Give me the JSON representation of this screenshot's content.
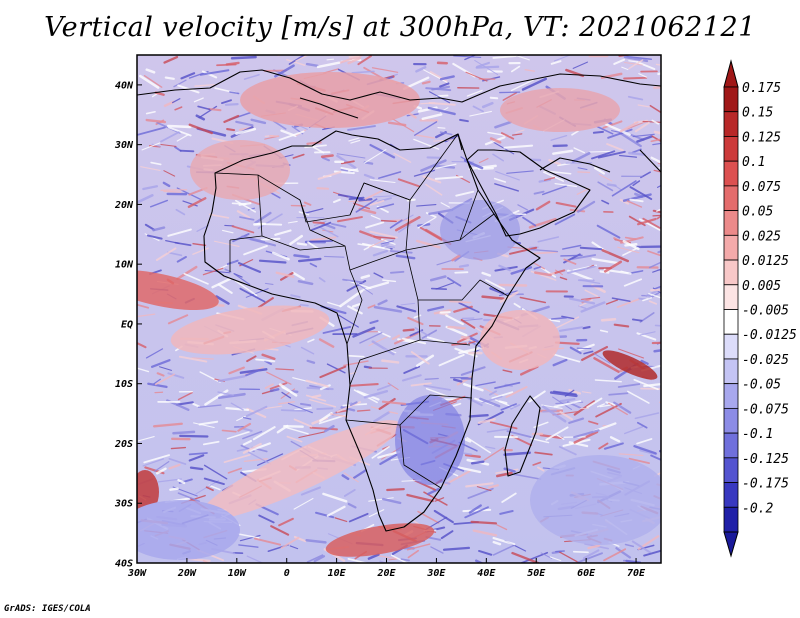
{
  "title": "Vertical velocity [m/s] at 300hPa, VT: 2021062121",
  "credit": "GrADS: IGES/COLA",
  "map": {
    "projection": "latlon",
    "lon_range": [
      -30,
      75
    ],
    "lat_range": [
      -40,
      45
    ],
    "lat_ticks": [
      {
        "value": 40,
        "label": "40N"
      },
      {
        "value": 30,
        "label": "30N"
      },
      {
        "value": 20,
        "label": "20N"
      },
      {
        "value": 10,
        "label": "10N"
      },
      {
        "value": 0,
        "label": "EQ"
      },
      {
        "value": -10,
        "label": "10S"
      },
      {
        "value": -20,
        "label": "20S"
      },
      {
        "value": -30,
        "label": "30S"
      },
      {
        "value": -40,
        "label": "40S"
      }
    ],
    "lon_ticks": [
      {
        "value": -30,
        "label": "30W"
      },
      {
        "value": -20,
        "label": "20W"
      },
      {
        "value": -10,
        "label": "10W"
      },
      {
        "value": 0,
        "label": "0"
      },
      {
        "value": 10,
        "label": "10E"
      },
      {
        "value": 20,
        "label": "20E"
      },
      {
        "value": 30,
        "label": "30E"
      },
      {
        "value": 40,
        "label": "40E"
      },
      {
        "value": 50,
        "label": "50E"
      },
      {
        "value": 60,
        "label": "60E"
      },
      {
        "value": 70,
        "label": "70E"
      }
    ]
  },
  "colorbar": {
    "levels": [
      {
        "label": "0.175",
        "color": "#a01818"
      },
      {
        "label": "0.15",
        "color": "#b82828"
      },
      {
        "label": "0.125",
        "color": "#cc3a3a"
      },
      {
        "label": "0.1",
        "color": "#dc5050"
      },
      {
        "label": "0.075",
        "color": "#e46c6c"
      },
      {
        "label": "0.05",
        "color": "#ec8a8a"
      },
      {
        "label": "0.025",
        "color": "#f4aaaa"
      },
      {
        "label": "0.0125",
        "color": "#f8c8c8"
      },
      {
        "label": "0.005",
        "color": "#fce4e4"
      },
      {
        "label": "-0.005",
        "color": "#ffffff"
      },
      {
        "label": "-0.0125",
        "color": "#dcdcfa"
      },
      {
        "label": "-0.025",
        "color": "#c4c4f4"
      },
      {
        "label": "-0.05",
        "color": "#a8a8ee"
      },
      {
        "label": "-0.075",
        "color": "#8c8ce6"
      },
      {
        "label": "-0.1",
        "color": "#7070dc"
      },
      {
        "label": "-0.125",
        "color": "#5454d0"
      },
      {
        "label": "-0.175",
        "color": "#3838c0"
      },
      {
        "label": "-0.2",
        "color": "#2020a8"
      }
    ],
    "top_arrow_color": "#a01818",
    "bottom_arrow_color": "#1a1a9a"
  }
}
